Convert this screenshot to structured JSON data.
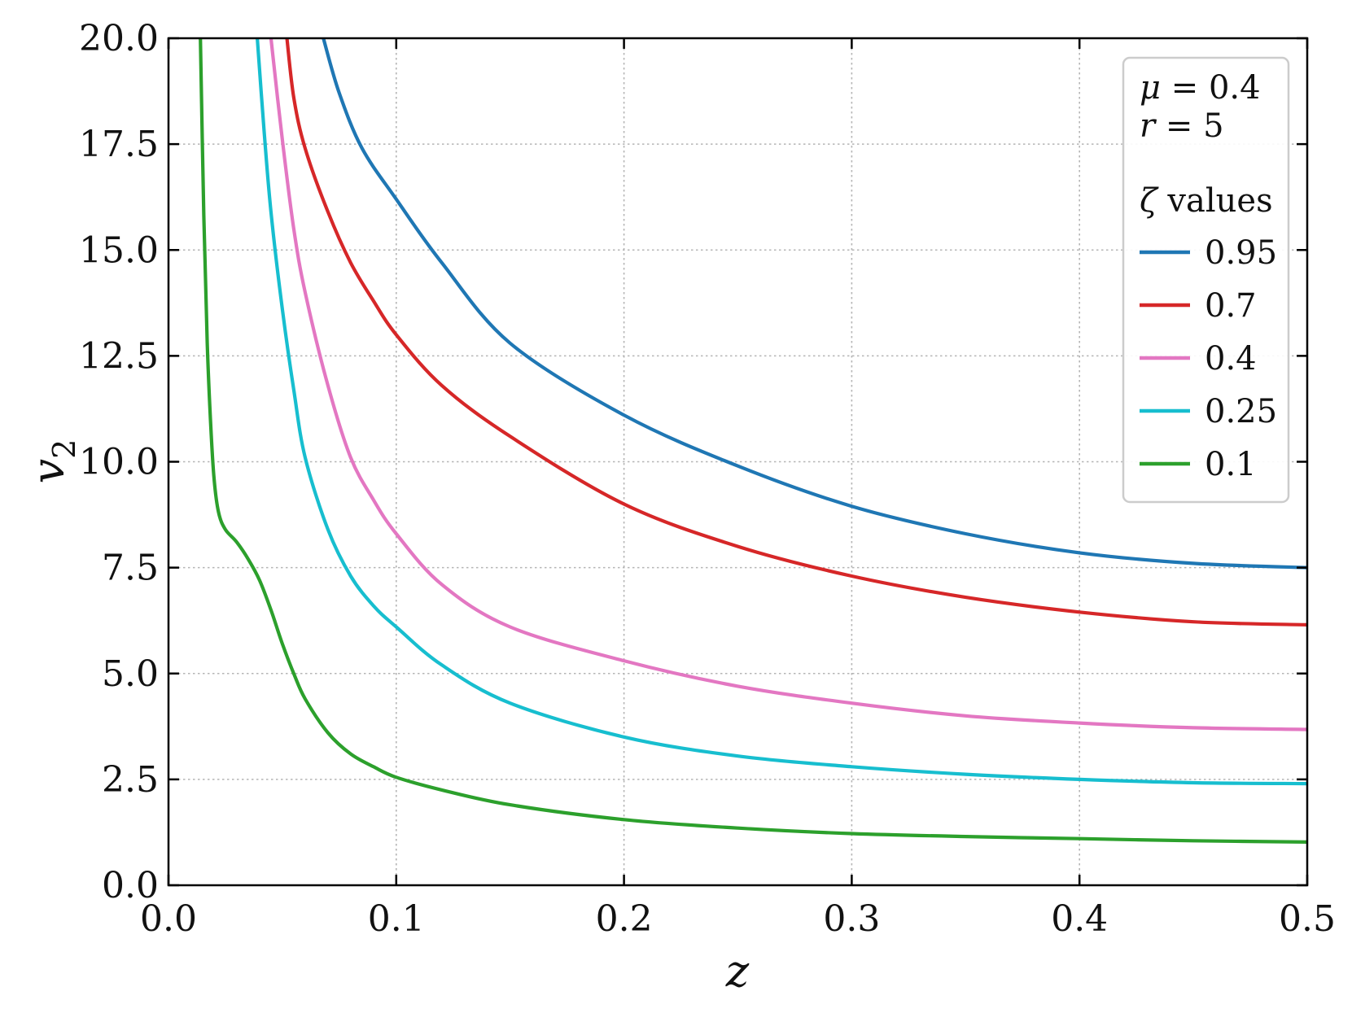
{
  "chart_data": {
    "type": "line",
    "xlabel": "z",
    "ylabel": "v",
    "ylabel_subscript": "2",
    "xlim": [
      0.0,
      0.5
    ],
    "ylim": [
      0.0,
      20.0
    ],
    "grid": true,
    "legend_placement": "top-right",
    "x_ticks": [
      "0.0",
      "0.1",
      "0.2",
      "0.3",
      "0.4",
      "0.5"
    ],
    "y_ticks": [
      "0.0",
      "2.5",
      "5.0",
      "7.5",
      "10.0",
      "12.5",
      "15.0",
      "17.5",
      "20.0"
    ],
    "annotations": {
      "mu_symbol": "μ",
      "mu_text": " = 0.4",
      "r_symbol": "r",
      "r_text": " = 5",
      "zeta_symbol": "ζ",
      "zeta_text": " values"
    },
    "series": [
      {
        "name": "0.95",
        "color": "#1f77b4",
        "x": [
          0.068,
          0.075,
          0.085,
          0.1,
          0.12,
          0.15,
          0.2,
          0.25,
          0.3,
          0.35,
          0.4,
          0.45,
          0.5
        ],
        "y": [
          20.0,
          18.7,
          17.4,
          16.2,
          14.7,
          12.8,
          11.1,
          9.9,
          8.95,
          8.3,
          7.85,
          7.6,
          7.5
        ]
      },
      {
        "name": "0.7",
        "color": "#d62728",
        "x": [
          0.052,
          0.055,
          0.06,
          0.07,
          0.08,
          0.09,
          0.1,
          0.12,
          0.15,
          0.2,
          0.25,
          0.3,
          0.35,
          0.4,
          0.45,
          0.5
        ],
        "y": [
          20.0,
          18.6,
          17.4,
          15.9,
          14.7,
          13.8,
          13.0,
          11.8,
          10.6,
          9.0,
          8.0,
          7.3,
          6.8,
          6.45,
          6.22,
          6.15
        ]
      },
      {
        "name": "0.4",
        "color": "#e377c2",
        "x": [
          0.045,
          0.05,
          0.055,
          0.06,
          0.07,
          0.08,
          0.09,
          0.1,
          0.12,
          0.15,
          0.2,
          0.25,
          0.3,
          0.35,
          0.4,
          0.45,
          0.5
        ],
        "y": [
          20.0,
          17.6,
          15.5,
          14.0,
          11.8,
          10.1,
          9.1,
          8.3,
          7.1,
          6.1,
          5.3,
          4.7,
          4.3,
          4.0,
          3.83,
          3.72,
          3.68
        ]
      },
      {
        "name": "0.25",
        "color": "#17becf",
        "x": [
          0.039,
          0.042,
          0.045,
          0.05,
          0.055,
          0.06,
          0.07,
          0.08,
          0.09,
          0.1,
          0.12,
          0.15,
          0.2,
          0.25,
          0.3,
          0.35,
          0.4,
          0.45,
          0.5
        ],
        "y": [
          20.0,
          17.8,
          15.9,
          13.6,
          11.7,
          10.1,
          8.4,
          7.3,
          6.6,
          6.1,
          5.2,
          4.3,
          3.5,
          3.05,
          2.8,
          2.62,
          2.5,
          2.42,
          2.4
        ]
      },
      {
        "name": "0.1",
        "color": "#2ca02c",
        "x": [
          0.014,
          0.0155,
          0.017,
          0.0185,
          0.02,
          0.022,
          0.025,
          0.03,
          0.035,
          0.04,
          0.045,
          0.05,
          0.055,
          0.06,
          0.07,
          0.08,
          0.09,
          0.1,
          0.12,
          0.15,
          0.2,
          0.25,
          0.3,
          0.35,
          0.4,
          0.45,
          0.5
        ],
        "y": [
          20.0,
          15.8,
          12.8,
          10.9,
          9.6,
          8.8,
          8.4,
          8.1,
          7.7,
          7.2,
          6.5,
          5.7,
          5.0,
          4.4,
          3.6,
          3.1,
          2.8,
          2.55,
          2.25,
          1.9,
          1.55,
          1.35,
          1.22,
          1.15,
          1.1,
          1.05,
          1.02
        ]
      }
    ]
  }
}
